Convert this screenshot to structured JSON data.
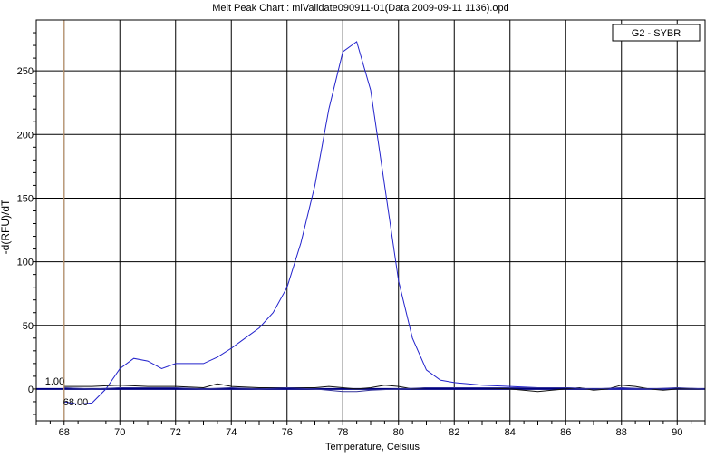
{
  "chart_data": {
    "type": "line",
    "title": "Melt Peak Chart : miValidate090911-01(Data 2009-09-11 1136).opd",
    "xlabel": "Temperature, Celsius",
    "ylabel": "-d(RFU)/dT",
    "xlim": [
      67,
      91
    ],
    "ylim": [
      -25,
      290
    ],
    "xticks": [
      68,
      70,
      72,
      74,
      76,
      78,
      80,
      82,
      84,
      86,
      88,
      90
    ],
    "yticks": [
      0,
      50,
      100,
      150,
      200,
      250
    ],
    "grid": true,
    "legend": {
      "position": "top-right",
      "entries": [
        "G2 - SYBR"
      ]
    },
    "cursor": {
      "temperature": 68,
      "x_readout": "68.00",
      "y_readout": "1.00",
      "color": "#d2a679"
    },
    "baseline_color": "#000080",
    "series": [
      {
        "name": "G2 - SYBR",
        "color": "#2222cc",
        "x": [
          68,
          68.5,
          69,
          69.5,
          70,
          70.5,
          71,
          71.5,
          72,
          72.5,
          73,
          73.5,
          74,
          74.5,
          75,
          75.5,
          76,
          76.5,
          77,
          77.5,
          78,
          78.5,
          79,
          79.5,
          80,
          80.5,
          81,
          81.5,
          82,
          82.5,
          83,
          84,
          85,
          86,
          87,
          88,
          89,
          90,
          91
        ],
        "values": [
          -10,
          -12,
          -11,
          0,
          16,
          24,
          22,
          16,
          20,
          20,
          20,
          25,
          32,
          40,
          48,
          60,
          80,
          115,
          160,
          220,
          265,
          273,
          235,
          160,
          85,
          40,
          15,
          7,
          5,
          4,
          3,
          2,
          1,
          1,
          0,
          0,
          0,
          0,
          0
        ]
      },
      {
        "name": "",
        "color": "#111111",
        "x": [
          68,
          69,
          70,
          71,
          72,
          73,
          73.5,
          74,
          75,
          76,
          77,
          77.5,
          78,
          78.5,
          79,
          79.5,
          80,
          80.5,
          81,
          82,
          83,
          84,
          85,
          85.5,
          86,
          86.5,
          87,
          87.5,
          88,
          88.5,
          89,
          89.5,
          90,
          91
        ],
        "values": [
          2,
          2,
          3,
          2,
          2,
          1,
          4,
          2,
          1,
          1,
          1,
          2,
          1,
          0,
          1,
          3,
          2,
          0,
          1,
          1,
          1,
          0,
          -2,
          -1,
          0,
          1,
          -1,
          0,
          3,
          2,
          0,
          -1,
          0,
          0
        ]
      },
      {
        "name": "",
        "color": "#333399",
        "x": [
          68,
          69,
          70,
          71,
          72,
          73,
          74,
          75,
          76,
          77,
          78,
          78.5,
          79,
          80,
          81,
          82,
          83,
          84,
          85,
          86,
          87,
          88,
          89,
          90,
          91
        ],
        "values": [
          1,
          0,
          1,
          1,
          1,
          0,
          1,
          0,
          1,
          0,
          -2,
          -2,
          -1,
          0,
          1,
          1,
          1,
          1,
          1,
          1,
          0,
          1,
          0,
          1,
          0
        ]
      }
    ]
  }
}
